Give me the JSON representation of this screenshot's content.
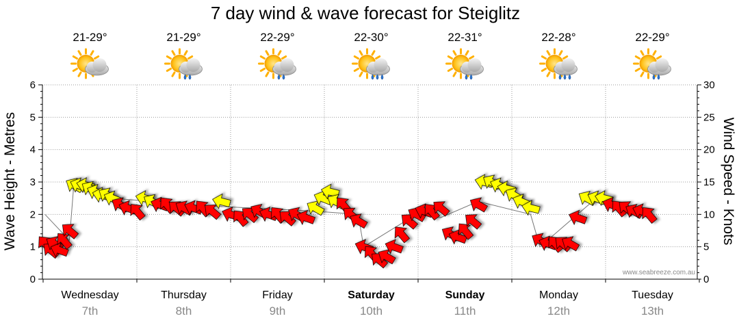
{
  "title": "7 day wind & wave forecast for Steiglitz",
  "credit": "www.seabreeze.com.au",
  "left_axis_label": "Wave Height - Metres",
  "right_axis_label": "Wind Speed - Knots",
  "colors": {
    "strong_wind": "#ff0000",
    "moderate_wind": "#ffff00",
    "grid": "#999999"
  },
  "days": [
    {
      "name": "Wednesday",
      "date": "7th",
      "temp": "21-29°",
      "icon": "partly-cloudy-icon",
      "bold": false
    },
    {
      "name": "Thursday",
      "date": "8th",
      "temp": "21-29°",
      "icon": "partly-cloudy-rain-icon",
      "bold": false
    },
    {
      "name": "Friday",
      "date": "9th",
      "temp": "22-29°",
      "icon": "partly-cloudy-rain-icon",
      "bold": false
    },
    {
      "name": "Saturday",
      "date": "10th",
      "temp": "22-30°",
      "icon": "cloudy-rain-icon",
      "bold": true
    },
    {
      "name": "Sunday",
      "date": "11th",
      "temp": "22-31°",
      "icon": "partly-cloudy-rain-icon",
      "bold": true
    },
    {
      "name": "Monday",
      "date": "12th",
      "temp": "22-28°",
      "icon": "cloudy-rain-icon",
      "bold": false
    },
    {
      "name": "Tuesday",
      "date": "13th",
      "temp": "22-29°",
      "icon": "partly-cloudy-rain-icon",
      "bold": false
    }
  ],
  "chart_data": {
    "type": "line",
    "title": "7 day wind & wave forecast for Steiglitz",
    "x_unit": "days from start of Wednesday 7th",
    "y_left": {
      "label": "Wave Height - Metres",
      "range": [
        0,
        6
      ],
      "ticks": [
        0,
        1,
        2,
        3,
        4,
        5,
        6
      ]
    },
    "y_right": {
      "label": "Wind Speed - Knots",
      "range": [
        0,
        30
      ],
      "ticks": [
        0,
        5,
        10,
        15,
        20,
        25,
        30
      ]
    },
    "grid": true,
    "series": [
      {
        "type": "wind-arrows",
        "note": "arrow vertical position = wind speed (knots); colour: red = stronger wind, yellow = moderate",
        "points": [
          {
            "x": -0.48,
            "knots": 5.5,
            "color": "red"
          },
          {
            "x": -0.42,
            "knots": 4.5,
            "color": "red"
          },
          {
            "x": -0.38,
            "knots": 5.5,
            "color": "red"
          },
          {
            "x": -0.33,
            "knots": 4.5,
            "color": "red"
          },
          {
            "x": -0.28,
            "knots": 6.0,
            "color": "red"
          },
          {
            "x": -0.22,
            "knots": 7.5,
            "color": "red"
          },
          {
            "x": -0.17,
            "knots": 14.5,
            "color": "yellow"
          },
          {
            "x": -0.12,
            "knots": 14.5,
            "color": "yellow"
          },
          {
            "x": -0.05,
            "knots": 14.5,
            "color": "yellow"
          },
          {
            "x": 0.0,
            "knots": 14.0,
            "color": "yellow"
          },
          {
            "x": 0.06,
            "knots": 13.5,
            "color": "yellow"
          },
          {
            "x": 0.12,
            "knots": 13.0,
            "color": "yellow"
          },
          {
            "x": 0.18,
            "knots": 13.0,
            "color": "yellow"
          },
          {
            "x": 0.24,
            "knots": 12.5,
            "color": "yellow"
          },
          {
            "x": 0.32,
            "knots": 11.5,
            "color": "red"
          },
          {
            "x": 0.4,
            "knots": 11.0,
            "color": "red"
          },
          {
            "x": 0.5,
            "knots": 10.5,
            "color": "red"
          },
          {
            "x": 0.58,
            "knots": 12.5,
            "color": "yellow"
          },
          {
            "x": 0.66,
            "knots": 12.0,
            "color": "yellow"
          },
          {
            "x": 0.74,
            "knots": 11.5,
            "color": "red"
          },
          {
            "x": 0.82,
            "knots": 11.5,
            "color": "red"
          },
          {
            "x": 0.92,
            "knots": 11.0,
            "color": "red"
          },
          {
            "x": 1.0,
            "knots": 11.0,
            "color": "red"
          },
          {
            "x": 1.1,
            "knots": 11.0,
            "color": "red"
          },
          {
            "x": 1.2,
            "knots": 11.0,
            "color": "red"
          },
          {
            "x": 1.3,
            "knots": 10.5,
            "color": "red"
          },
          {
            "x": 1.4,
            "knots": 12.0,
            "color": "yellow"
          },
          {
            "x": 1.5,
            "knots": 10.0,
            "color": "red"
          },
          {
            "x": 1.6,
            "knots": 9.5,
            "color": "red"
          },
          {
            "x": 1.7,
            "knots": 10.0,
            "color": "red"
          },
          {
            "x": 1.8,
            "knots": 10.5,
            "color": "red"
          },
          {
            "x": 1.9,
            "knots": 10.0,
            "color": "red"
          },
          {
            "x": 2.0,
            "knots": 10.0,
            "color": "red"
          },
          {
            "x": 2.1,
            "knots": 9.5,
            "color": "red"
          },
          {
            "x": 2.2,
            "knots": 10.0,
            "color": "red"
          },
          {
            "x": 2.3,
            "knots": 9.5,
            "color": "red"
          },
          {
            "x": 2.4,
            "knots": 11.0,
            "color": "yellow"
          },
          {
            "x": 2.48,
            "knots": 12.5,
            "color": "yellow"
          },
          {
            "x": 2.56,
            "knots": 13.5,
            "color": "yellow"
          },
          {
            "x": 2.62,
            "knots": 12.0,
            "color": "yellow"
          },
          {
            "x": 2.7,
            "knots": 11.5,
            "color": "red"
          },
          {
            "x": 2.78,
            "knots": 10.0,
            "color": "red"
          },
          {
            "x": 2.86,
            "knots": 9.0,
            "color": "red"
          },
          {
            "x": 2.92,
            "knots": 5.0,
            "color": "red"
          },
          {
            "x": 3.0,
            "knots": 4.0,
            "color": "red"
          },
          {
            "x": 3.08,
            "knots": 3.0,
            "color": "red"
          },
          {
            "x": 3.16,
            "knots": 3.5,
            "color": "red"
          },
          {
            "x": 3.24,
            "knots": 5.0,
            "color": "red"
          },
          {
            "x": 3.32,
            "knots": 7.0,
            "color": "red"
          },
          {
            "x": 3.4,
            "knots": 9.0,
            "color": "red"
          },
          {
            "x": 3.48,
            "knots": 10.0,
            "color": "red"
          },
          {
            "x": 3.56,
            "knots": 10.5,
            "color": "red"
          },
          {
            "x": 3.64,
            "knots": 10.5,
            "color": "red"
          },
          {
            "x": 3.74,
            "knots": 11.0,
            "color": "red"
          },
          {
            "x": 3.84,
            "knots": 7.0,
            "color": "red"
          },
          {
            "x": 3.92,
            "knots": 6.5,
            "color": "red"
          },
          {
            "x": 4.0,
            "knots": 7.5,
            "color": "red"
          },
          {
            "x": 4.08,
            "knots": 9.0,
            "color": "red"
          },
          {
            "x": 4.14,
            "knots": 11.5,
            "color": "red"
          },
          {
            "x": 4.2,
            "knots": 15.0,
            "color": "yellow"
          },
          {
            "x": 4.28,
            "knots": 15.0,
            "color": "yellow"
          },
          {
            "x": 4.36,
            "knots": 14.5,
            "color": "yellow"
          },
          {
            "x": 4.44,
            "knots": 14.0,
            "color": "yellow"
          },
          {
            "x": 4.52,
            "knots": 13.0,
            "color": "yellow"
          },
          {
            "x": 4.6,
            "knots": 12.0,
            "color": "yellow"
          },
          {
            "x": 4.7,
            "knots": 11.0,
            "color": "yellow"
          },
          {
            "x": 4.8,
            "knots": 6.0,
            "color": "red"
          },
          {
            "x": 4.88,
            "knots": 5.5,
            "color": "red"
          },
          {
            "x": 4.96,
            "knots": 5.5,
            "color": "red"
          },
          {
            "x": 5.04,
            "knots": 5.5,
            "color": "red"
          },
          {
            "x": 5.12,
            "knots": 5.5,
            "color": "red"
          },
          {
            "x": 5.2,
            "knots": 9.5,
            "color": "red"
          },
          {
            "x": 5.3,
            "knots": 12.5,
            "color": "yellow"
          },
          {
            "x": 5.4,
            "knots": 12.5,
            "color": "yellow"
          },
          {
            "x": 5.48,
            "knots": 12.5,
            "color": "yellow"
          },
          {
            "x": 5.56,
            "knots": 11.5,
            "color": "red"
          },
          {
            "x": 5.64,
            "knots": 11.0,
            "color": "red"
          },
          {
            "x": 5.72,
            "knots": 11.0,
            "color": "red"
          },
          {
            "x": 5.8,
            "knots": 10.5,
            "color": "red"
          },
          {
            "x": 5.88,
            "knots": 10.5,
            "color": "red"
          },
          {
            "x": 5.96,
            "knots": 10.0,
            "color": "red"
          }
        ]
      },
      {
        "type": "wave-height-line",
        "name": "Wave Height",
        "units": "metres",
        "x": [
          -0.48,
          -0.22,
          -0.17,
          0.24,
          0.66,
          1.0,
          2.4,
          2.86,
          2.92,
          3.48,
          3.74,
          4.14,
          4.7,
          4.8,
          5.4,
          5.96
        ],
        "y": [
          2.0,
          1.2,
          3.0,
          2.5,
          2.4,
          2.3,
          2.1,
          2.0,
          1.0,
          2.0,
          1.9,
          2.4,
          2.0,
          1.0,
          2.5,
          2.0
        ]
      }
    ]
  }
}
